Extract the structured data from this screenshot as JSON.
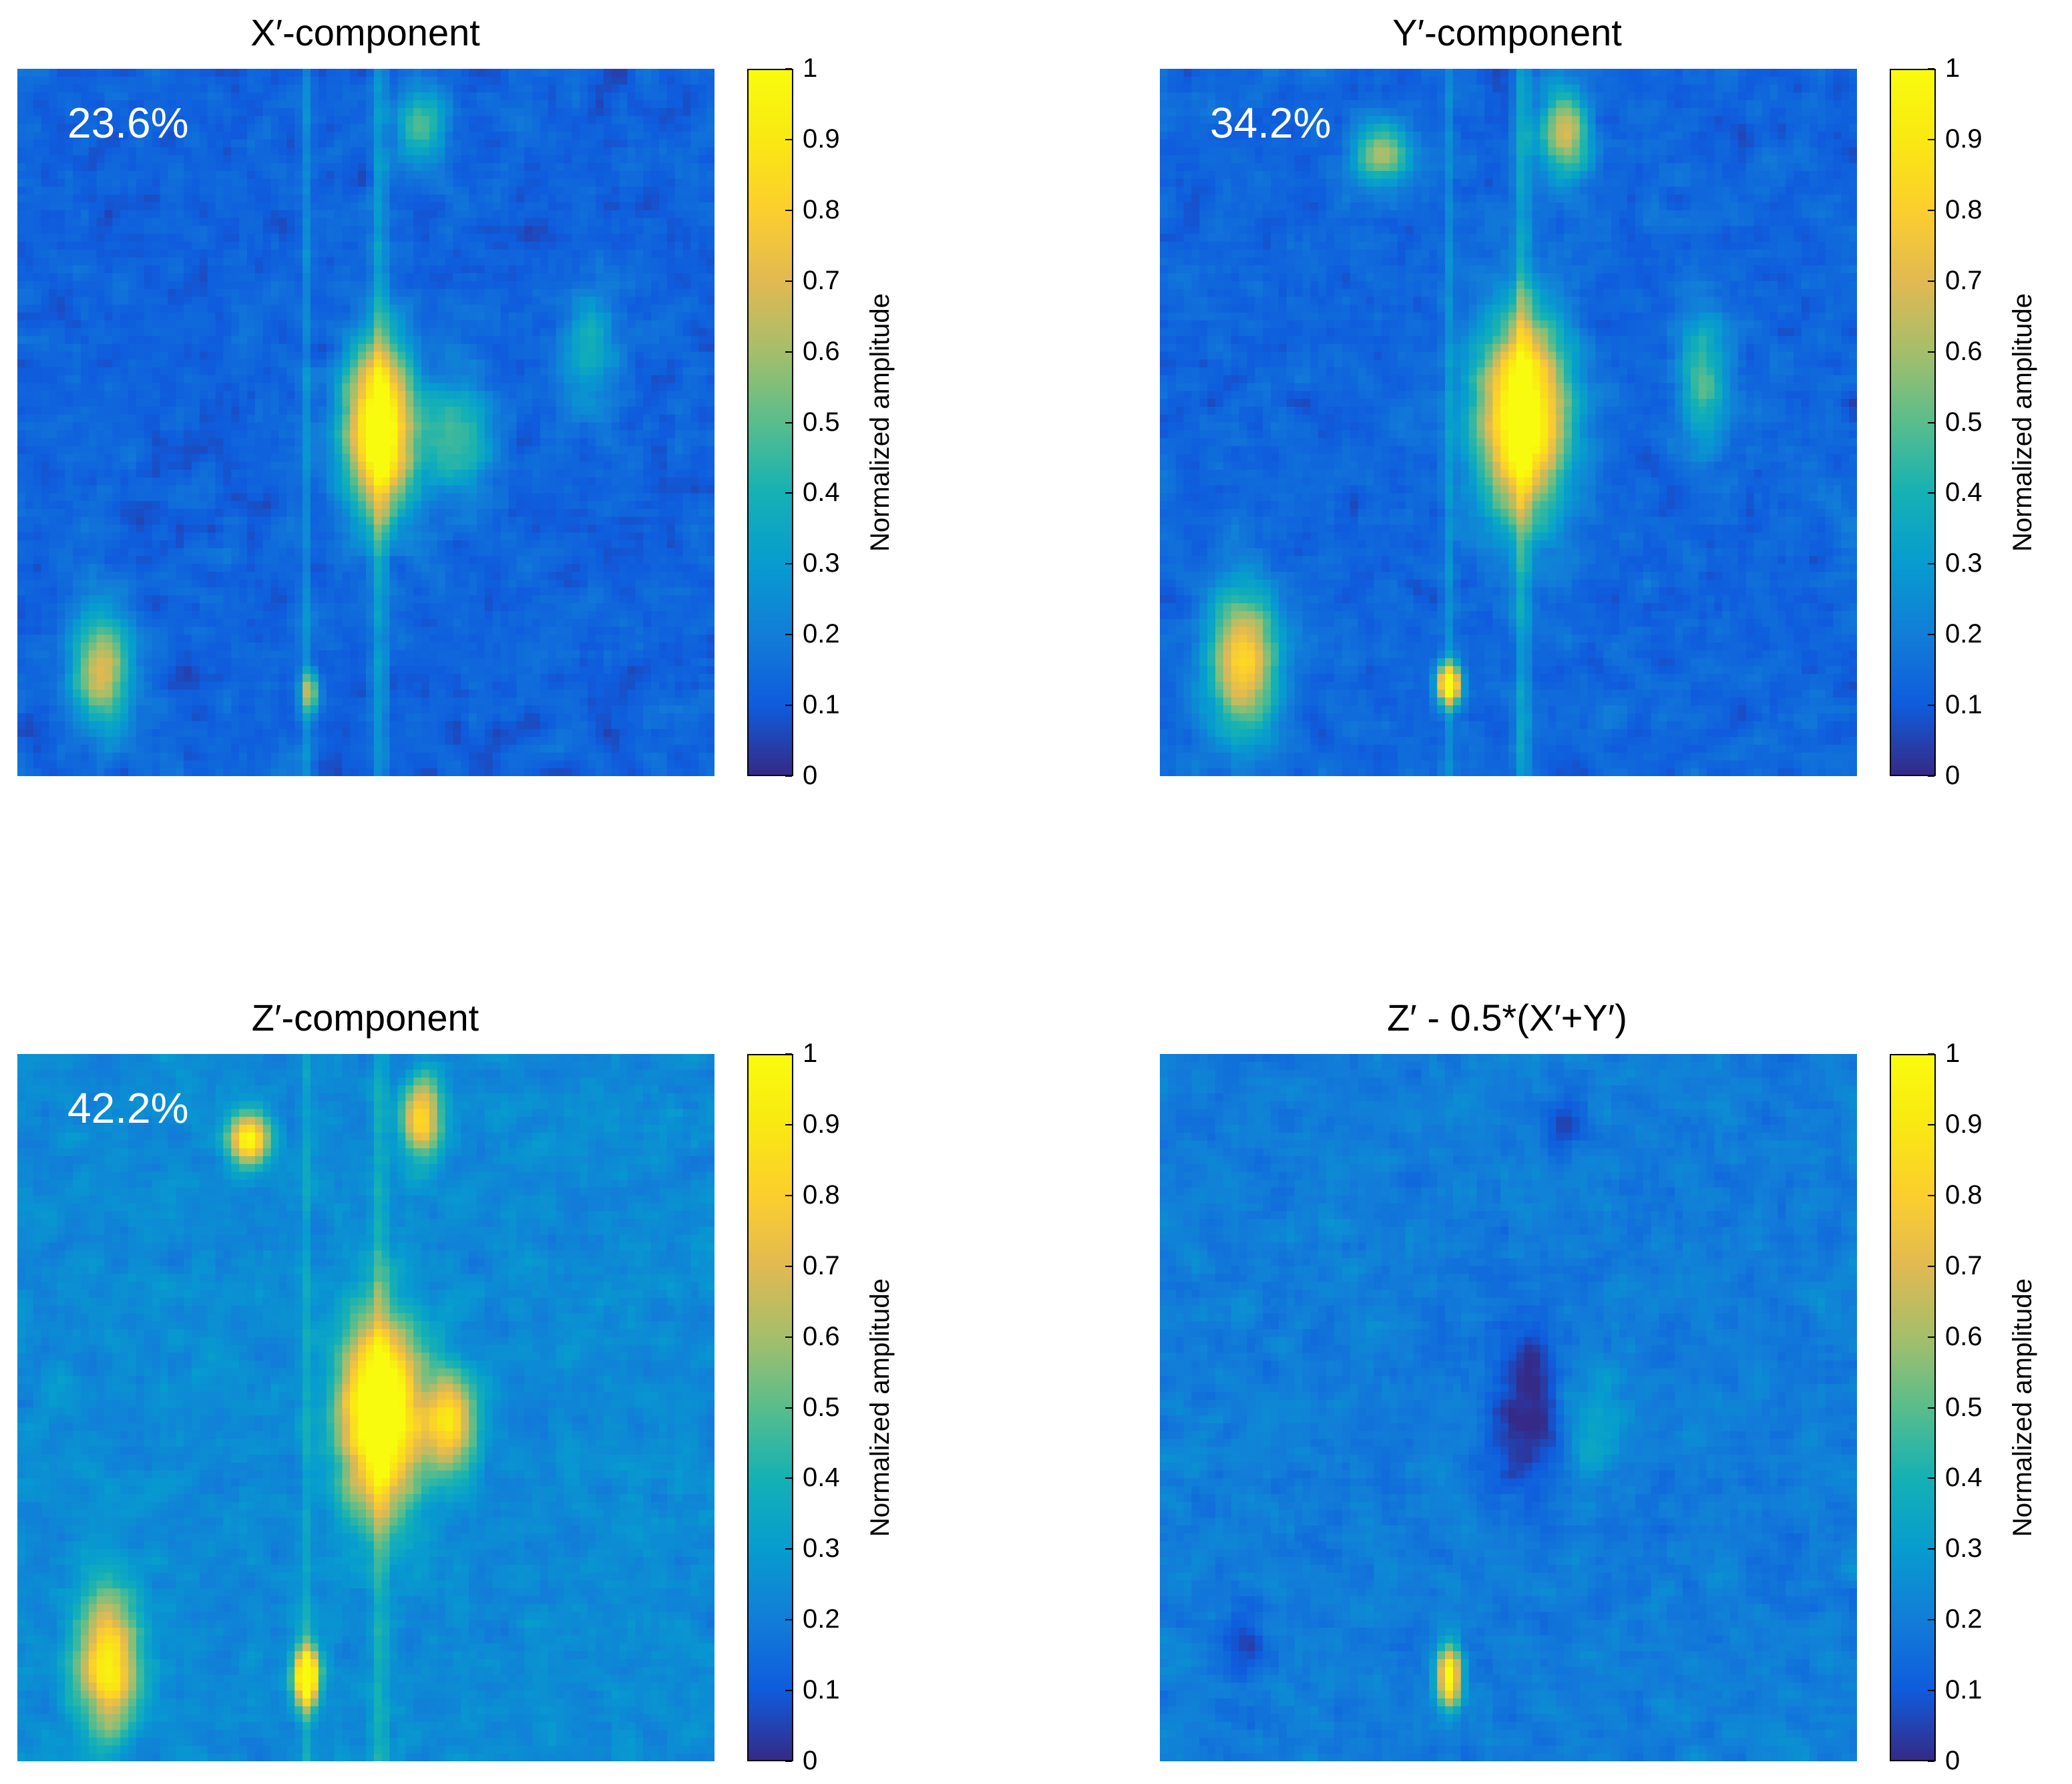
{
  "chart_data": [
    {
      "type": "heatmap",
      "title": "X′-component",
      "annotation": "23.6%",
      "colorbar": {
        "label": "Normalized amplitude",
        "range": [
          0,
          1
        ],
        "ticks": [
          "0",
          "0.1",
          "0.2",
          "0.3",
          "0.4",
          "0.5",
          "0.6",
          "0.7",
          "0.8",
          "0.9",
          "1"
        ]
      },
      "background_level": 0.12,
      "features": [
        {
          "kind": "blob",
          "cx": 0.52,
          "cy": 0.51,
          "sx": 0.035,
          "sy": 0.085,
          "amp": 1.0
        },
        {
          "kind": "streak",
          "cx": 0.52,
          "sx": 0.008,
          "amp": 0.18
        },
        {
          "kind": "streak",
          "cx": 0.415,
          "sx": 0.006,
          "amp": 0.12
        },
        {
          "kind": "blob",
          "cx": 0.12,
          "cy": 0.85,
          "sx": 0.03,
          "sy": 0.06,
          "amp": 0.55
        },
        {
          "kind": "blob",
          "cx": 0.42,
          "cy": 0.88,
          "sx": 0.01,
          "sy": 0.02,
          "amp": 0.45
        },
        {
          "kind": "blob",
          "cx": 0.58,
          "cy": 0.08,
          "sx": 0.025,
          "sy": 0.04,
          "amp": 0.35
        },
        {
          "kind": "blob",
          "cx": 0.63,
          "cy": 0.52,
          "sx": 0.035,
          "sy": 0.06,
          "amp": 0.35
        },
        {
          "kind": "blob",
          "cx": 0.82,
          "cy": 0.4,
          "sx": 0.03,
          "sy": 0.06,
          "amp": 0.25
        }
      ]
    },
    {
      "type": "heatmap",
      "title": "Y′-component",
      "annotation": "34.2%",
      "colorbar": {
        "label": "Normalized amplitude",
        "range": [
          0,
          1
        ],
        "ticks": [
          "0",
          "0.1",
          "0.2",
          "0.3",
          "0.4",
          "0.5",
          "0.6",
          "0.7",
          "0.8",
          "0.9",
          "1"
        ]
      },
      "background_level": 0.13,
      "features": [
        {
          "kind": "blob",
          "cx": 0.52,
          "cy": 0.49,
          "sx": 0.045,
          "sy": 0.1,
          "amp": 1.0
        },
        {
          "kind": "streak",
          "cx": 0.52,
          "sx": 0.008,
          "amp": 0.2
        },
        {
          "kind": "streak",
          "cx": 0.415,
          "sx": 0.006,
          "amp": 0.12
        },
        {
          "kind": "blob",
          "cx": 0.12,
          "cy": 0.84,
          "sx": 0.035,
          "sy": 0.07,
          "amp": 0.7
        },
        {
          "kind": "blob",
          "cx": 0.415,
          "cy": 0.87,
          "sx": 0.012,
          "sy": 0.02,
          "amp": 0.95
        },
        {
          "kind": "blob",
          "cx": 0.58,
          "cy": 0.09,
          "sx": 0.025,
          "sy": 0.045,
          "amp": 0.55
        },
        {
          "kind": "blob",
          "cx": 0.32,
          "cy": 0.12,
          "sx": 0.03,
          "sy": 0.03,
          "amp": 0.5
        },
        {
          "kind": "blob",
          "cx": 0.78,
          "cy": 0.44,
          "sx": 0.025,
          "sy": 0.07,
          "amp": 0.35
        }
      ]
    },
    {
      "type": "heatmap",
      "title": "Z′-component",
      "annotation": "42.2%",
      "colorbar": {
        "label": "Normalized amplitude",
        "range": [
          0,
          1
        ],
        "ticks": [
          "0",
          "0.1",
          "0.2",
          "0.3",
          "0.4",
          "0.5",
          "0.6",
          "0.7",
          "0.8",
          "0.9",
          "1"
        ]
      },
      "background_level": 0.24,
      "features": [
        {
          "kind": "blob",
          "cx": 0.52,
          "cy": 0.51,
          "sx": 0.04,
          "sy": 0.095,
          "amp": 1.0
        },
        {
          "kind": "streak",
          "cx": 0.52,
          "sx": 0.008,
          "amp": 0.15
        },
        {
          "kind": "streak",
          "cx": 0.415,
          "sx": 0.006,
          "amp": 0.1
        },
        {
          "kind": "blob",
          "cx": 0.13,
          "cy": 0.86,
          "sx": 0.03,
          "sy": 0.07,
          "amp": 0.7
        },
        {
          "kind": "blob",
          "cx": 0.415,
          "cy": 0.88,
          "sx": 0.012,
          "sy": 0.03,
          "amp": 1.0
        },
        {
          "kind": "blob",
          "cx": 0.33,
          "cy": 0.12,
          "sx": 0.02,
          "sy": 0.025,
          "amp": 0.75
        },
        {
          "kind": "blob",
          "cx": 0.58,
          "cy": 0.09,
          "sx": 0.02,
          "sy": 0.04,
          "amp": 0.6
        },
        {
          "kind": "blob",
          "cx": 0.62,
          "cy": 0.52,
          "sx": 0.025,
          "sy": 0.05,
          "amp": 0.6
        }
      ]
    },
    {
      "type": "heatmap",
      "title": "Z′ - 0.5*(X′+Y′)",
      "annotation": "",
      "colorbar": {
        "label": "Normalized amplitude",
        "range": [
          0,
          1
        ],
        "ticks": [
          "0",
          "0.1",
          "0.2",
          "0.3",
          "0.4",
          "0.5",
          "0.6",
          "0.7",
          "0.8",
          "0.9",
          "1"
        ]
      },
      "background_level": 0.2,
      "features": [
        {
          "kind": "blob",
          "cx": 0.525,
          "cy": 0.5,
          "sx": 0.035,
          "sy": 0.09,
          "amp": -0.22
        },
        {
          "kind": "blob",
          "cx": 0.415,
          "cy": 0.88,
          "sx": 0.012,
          "sy": 0.03,
          "amp": 0.85
        },
        {
          "kind": "blob",
          "cx": 0.12,
          "cy": 0.84,
          "sx": 0.02,
          "sy": 0.035,
          "amp": -0.15
        },
        {
          "kind": "blob",
          "cx": 0.58,
          "cy": 0.09,
          "sx": 0.02,
          "sy": 0.03,
          "amp": -0.14
        },
        {
          "kind": "blob",
          "cx": 0.62,
          "cy": 0.52,
          "sx": 0.03,
          "sy": 0.06,
          "amp": 0.15
        }
      ]
    }
  ]
}
